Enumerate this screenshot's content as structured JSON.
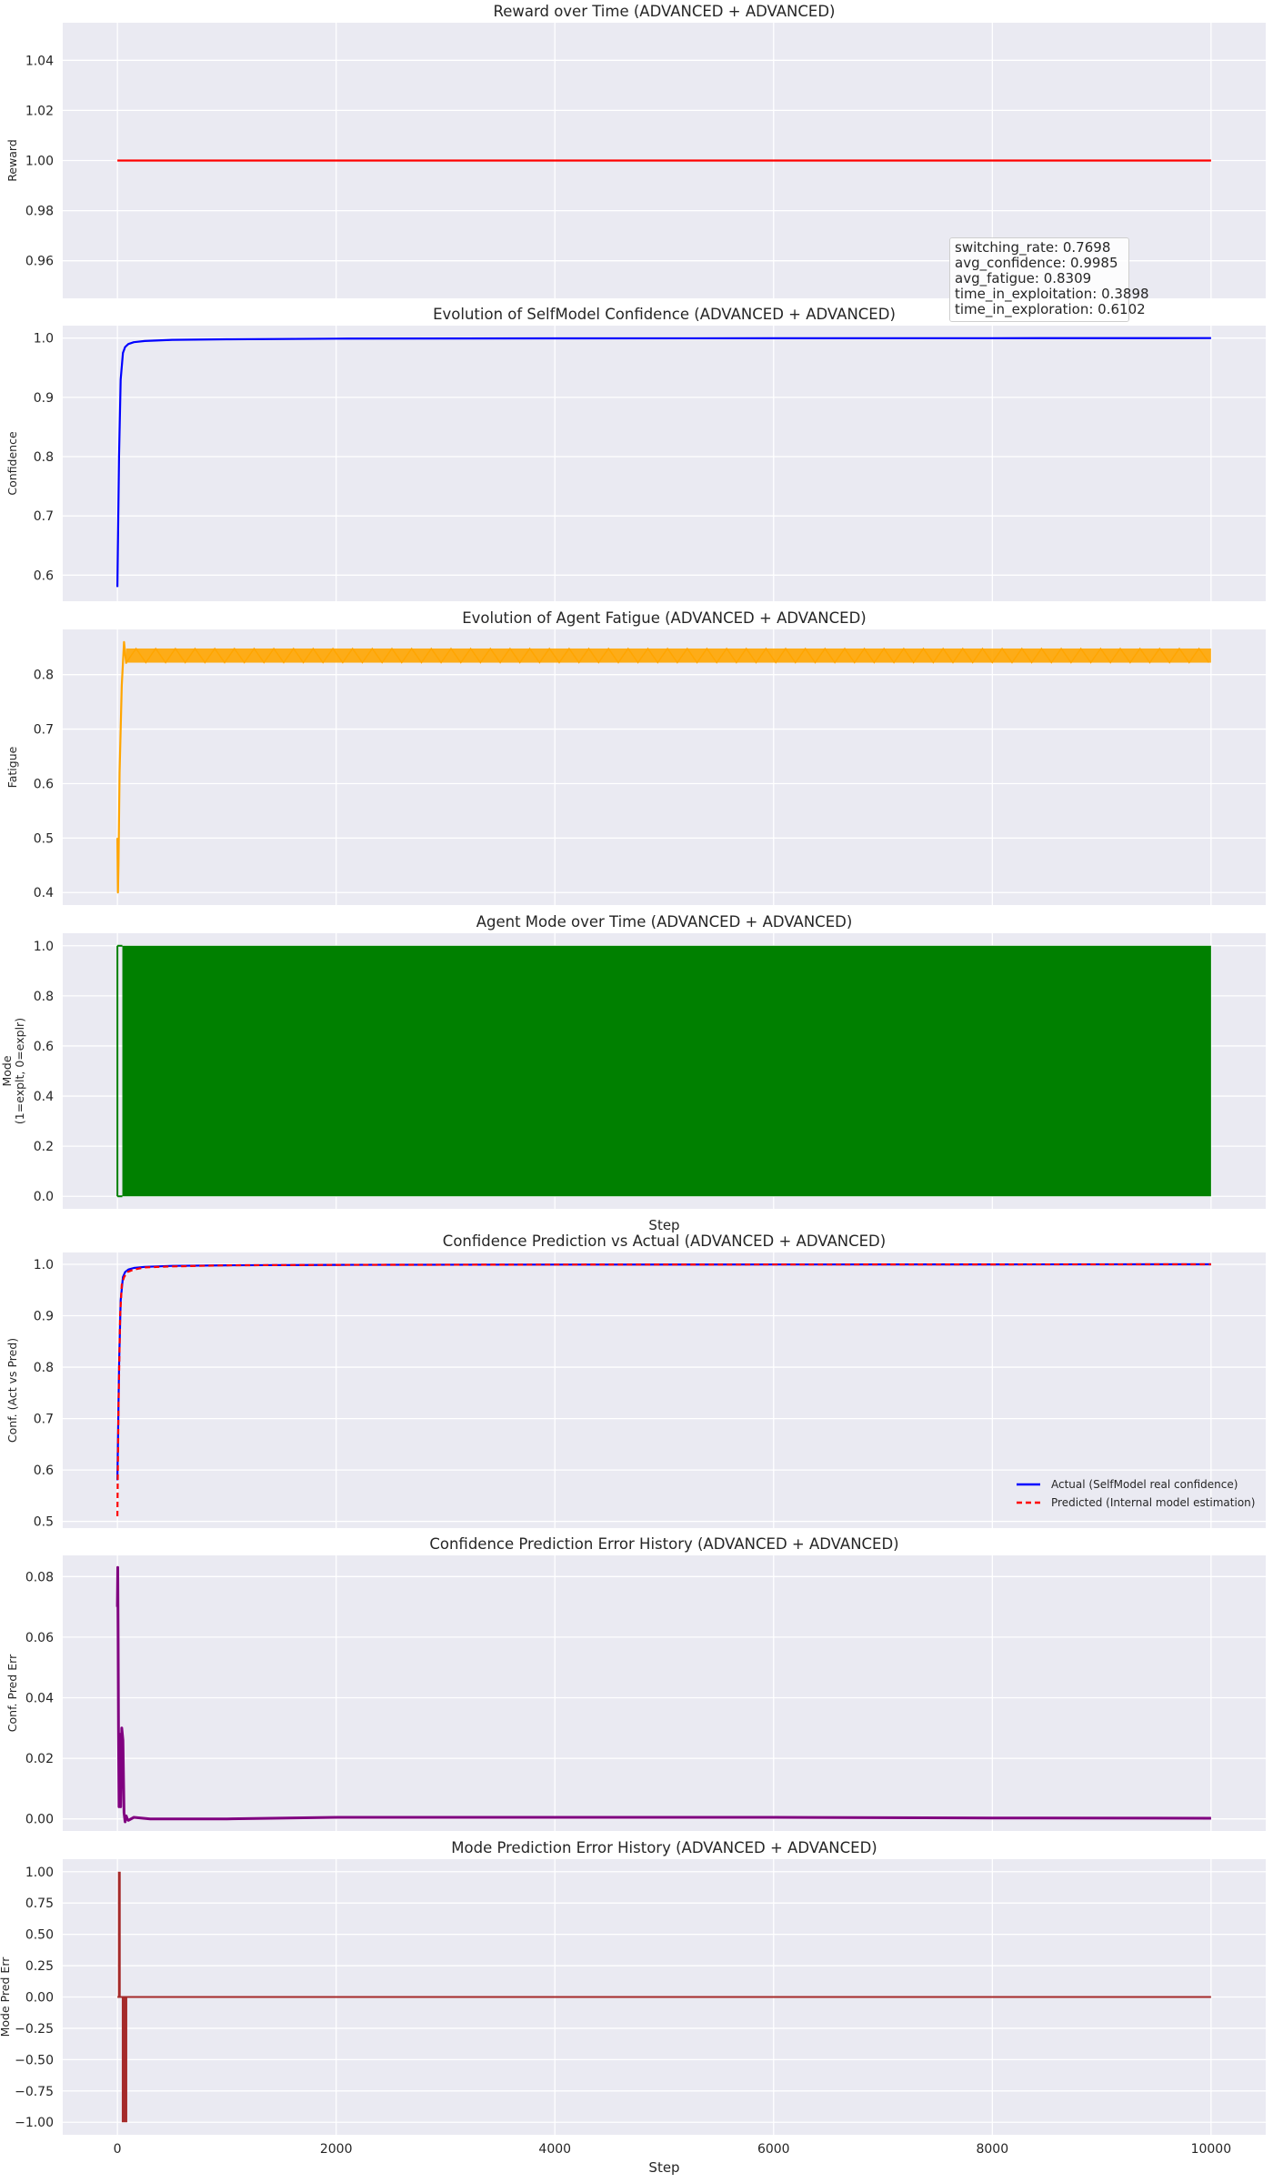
{
  "figure": {
    "background": "#ffffff",
    "axes_background": "#eaeaf2",
    "grid_color": "#ffffff"
  },
  "stats_box": {
    "lines": [
      "switching_rate: 0.7698",
      "avg_confidence: 0.9985",
      "avg_fatigue: 0.8309",
      "time_in_exploitation: 0.3898",
      "time_in_exploration: 0.6102"
    ]
  },
  "chart_data": [
    {
      "type": "line",
      "title": "Reward over Time (ADVANCED + ADVANCED)",
      "xlabel": "",
      "ylabel": "Reward",
      "xlim": [
        -500,
        10500
      ],
      "ylim": [
        0.945,
        1.055
      ],
      "yticks": [
        0.96,
        0.98,
        1.0,
        1.02,
        1.04
      ],
      "yticklabels": [
        "0.96",
        "0.98",
        "1.00",
        "1.02",
        "1.04"
      ],
      "series": [
        {
          "name": "Reward",
          "color": "#ff0000",
          "x": [
            0,
            10000
          ],
          "y": [
            1.0,
            1.0
          ]
        }
      ]
    },
    {
      "type": "line",
      "title": "Evolution of SelfModel Confidence (ADVANCED + ADVANCED)",
      "xlabel": "",
      "ylabel": "Confidence",
      "xlim": [
        -500,
        10500
      ],
      "ylim": [
        0.556,
        1.021
      ],
      "yticks": [
        0.6,
        0.7,
        0.8,
        0.9,
        1.0
      ],
      "yticklabels": [
        "0.6",
        "0.7",
        "0.8",
        "0.9",
        "1.0"
      ],
      "series": [
        {
          "name": "Confidence",
          "color": "#0000ff",
          "x": [
            0,
            15,
            30,
            50,
            70,
            100,
            150,
            250,
            500,
            1000,
            2000,
            4000,
            6000,
            8000,
            10000
          ],
          "y": [
            0.58,
            0.8,
            0.93,
            0.975,
            0.985,
            0.99,
            0.993,
            0.995,
            0.997,
            0.998,
            0.999,
            0.9995,
            0.9997,
            0.9998,
            1.0
          ]
        }
      ]
    },
    {
      "type": "line",
      "title": "Evolution of Agent Fatigue (ADVANCED + ADVANCED)",
      "xlabel": "",
      "ylabel": "Fatigue",
      "xlim": [
        -500,
        10500
      ],
      "ylim": [
        0.377,
        0.883
      ],
      "yticks": [
        0.4,
        0.5,
        0.6,
        0.7,
        0.8
      ],
      "yticklabels": [
        "0.4",
        "0.5",
        "0.6",
        "0.7",
        "0.8"
      ],
      "series": [
        {
          "name": "Fatigue",
          "color": "#ffa500",
          "x": [
            0,
            5,
            10,
            20,
            40,
            60,
            80
          ],
          "y": [
            0.5,
            0.4,
            0.45,
            0.62,
            0.78,
            0.86,
            0.82
          ],
          "band": {
            "x_start": 80,
            "x_end": 10000,
            "low": 0.822,
            "high": 0.848,
            "center": 0.835
          }
        }
      ]
    },
    {
      "type": "line",
      "title": "Agent Mode over Time (ADVANCED + ADVANCED)",
      "xlabel": "Step",
      "ylabel": "Mode\n(1=expl, 0=explr)",
      "ylabel_lines": [
        "Mode",
        "(1=explt, 0=explr)"
      ],
      "xlim": [
        -500,
        10500
      ],
      "ylim": [
        -0.05,
        1.05
      ],
      "yticks": [
        0.0,
        0.2,
        0.4,
        0.6,
        0.8,
        1.0
      ],
      "yticklabels": [
        "0.0",
        "0.2",
        "0.4",
        "0.6",
        "0.8",
        "1.0"
      ],
      "series": [
        {
          "name": "Mode",
          "color": "#008000",
          "note": "rapid switching between 0 and 1 across all steps",
          "x": [
            0,
            10000
          ],
          "y_min": 0,
          "y_max": 1
        }
      ]
    },
    {
      "type": "line",
      "title": "Confidence Prediction vs Actual (ADVANCED + ADVANCED)",
      "xlabel": "",
      "ylabel": "Conf. (Act vs Pred)",
      "xlim": [
        -500,
        10500
      ],
      "ylim": [
        0.487,
        1.023
      ],
      "yticks": [
        0.5,
        0.6,
        0.7,
        0.8,
        0.9,
        1.0
      ],
      "yticklabels": [
        "0.5",
        "0.6",
        "0.7",
        "0.8",
        "0.9",
        "1.0"
      ],
      "legend": {
        "location": "lower-right",
        "entries": [
          "Actual (SelfModel real confidence)",
          "Predicted (Internal model estimation)"
        ]
      },
      "series": [
        {
          "name": "Actual (SelfModel real confidence)",
          "color": "#0000ff",
          "style": "solid",
          "x": [
            0,
            15,
            30,
            50,
            70,
            100,
            150,
            250,
            500,
            1000,
            2000,
            4000,
            6000,
            8000,
            10000
          ],
          "y": [
            0.58,
            0.8,
            0.93,
            0.975,
            0.985,
            0.99,
            0.993,
            0.995,
            0.997,
            0.998,
            0.999,
            0.9995,
            0.9997,
            0.9998,
            1.0
          ]
        },
        {
          "name": "Predicted (Internal model estimation)",
          "color": "#ff0000",
          "style": "dashed",
          "x": [
            0,
            10,
            25,
            40,
            60,
            90,
            150,
            250,
            500,
            1000,
            2000,
            4000,
            6000,
            8000,
            10000
          ],
          "y": [
            0.51,
            0.72,
            0.9,
            0.96,
            0.975,
            0.985,
            0.99,
            0.994,
            0.996,
            0.998,
            0.999,
            0.9995,
            0.9997,
            0.9998,
            1.0
          ]
        }
      ]
    },
    {
      "type": "line",
      "title": "Confidence Prediction Error History (ADVANCED + ADVANCED)",
      "xlabel": "",
      "ylabel": "Conf. Pred Err",
      "xlim": [
        -500,
        10500
      ],
      "ylim": [
        -0.004,
        0.087
      ],
      "yticks": [
        0.0,
        0.02,
        0.04,
        0.06,
        0.08
      ],
      "yticklabels": [
        "0.00",
        "0.02",
        "0.04",
        "0.06",
        "0.08"
      ],
      "series": [
        {
          "name": "Conf. Pred Err",
          "color": "#800080",
          "x": [
            0,
            3,
            6,
            10,
            15,
            20,
            30,
            40,
            50,
            60,
            70,
            80,
            90,
            100,
            150,
            300,
            1000,
            2000,
            4000,
            6000,
            8000,
            10000
          ],
          "y": [
            0.07,
            0.083,
            0.06,
            0.03,
            0.004,
            0.028,
            0.004,
            0.03,
            0.026,
            0.002,
            -0.001,
            0.001,
            0.0,
            -0.0005,
            0.0005,
            0.0,
            0.0,
            0.0005,
            0.0005,
            0.0005,
            0.0003,
            0.0002
          ]
        }
      ]
    },
    {
      "type": "line",
      "title": "Mode Prediction Error History (ADVANCED + ADVANCED)",
      "xlabel": "Step",
      "ylabel": "Mode Pred Err",
      "xlim": [
        -500,
        10500
      ],
      "ylim": [
        -1.1,
        1.1
      ],
      "yticks": [
        -1.0,
        -0.75,
        -0.5,
        -0.25,
        0.0,
        0.25,
        0.5,
        0.75,
        1.0
      ],
      "yticklabels": [
        "−1.00",
        "−0.75",
        "−0.50",
        "−0.25",
        "0.00",
        "0.25",
        "0.50",
        "0.75",
        "1.00"
      ],
      "xticks": [
        0,
        2000,
        4000,
        6000,
        8000,
        10000
      ],
      "xticklabels": [
        "0",
        "2000",
        "4000",
        "6000",
        "8000",
        "10000"
      ],
      "series": [
        {
          "name": "Mode Pred Err",
          "color": "#a52a2a",
          "x": [
            0,
            5,
            5,
            10,
            10,
            40,
            40,
            60,
            60,
            85,
            85,
            10000
          ],
          "y": [
            0,
            0,
            1,
            1,
            0,
            0,
            -1,
            -1,
            0,
            0,
            -1,
            0
          ],
          "spikes": [
            {
              "x_start": 5,
              "x_end": 12,
              "y": 1
            },
            {
              "x_start": 40,
              "x_end": 90,
              "y": -1
            }
          ],
          "baseline": 0
        }
      ]
    }
  ]
}
